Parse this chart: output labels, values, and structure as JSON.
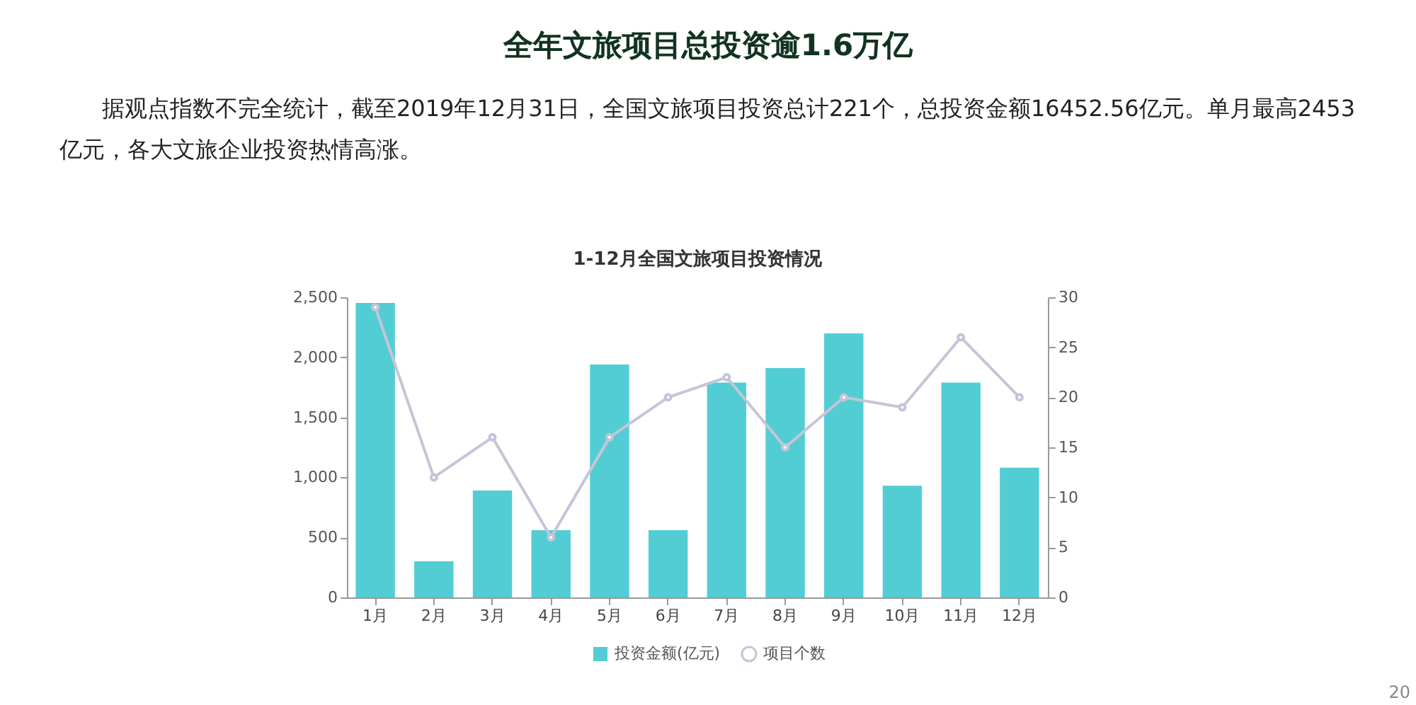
{
  "chart_data": {
    "type": "bar",
    "title": "全年文旅项目总投资逾1.6万亿",
    "subtitle": "据观点指数不完全统计，截至2019年12月31日，全国文旅项目投资总计221个，总投资金额16452.56亿元。单月最高2453亿元，各大文旅企业投资热情高涨。",
    "annotations": [
      "1-12月全国文旅项目投资情况",
      "20"
    ],
    "categories": [
      "1月",
      "2月",
      "3月",
      "4月",
      "5月",
      "6月",
      "7月",
      "8月",
      "9月",
      "10月",
      "11月",
      "12月"
    ],
    "series": [
      {
        "name": "投资金额(亿元)",
        "color": "#52cdd3",
        "values": [
          2453,
          300,
          890,
          560,
          1940,
          560,
          1790,
          1910,
          2200,
          930,
          1790,
          1080
        ]
      },
      {
        "name": "项目个数",
        "type": "line",
        "axis": "y2",
        "color": "#c5c5d8",
        "marker": "circle",
        "values": [
          29,
          12,
          16,
          6,
          16,
          20,
          22,
          15,
          20,
          19,
          26,
          20
        ]
      }
    ],
    "ylim": [
      0,
      2500
    ],
    "yticks": [
      0,
      500,
      {
        "value": 1000,
        "label": "1,000"
      },
      {
        "value": 1500,
        "label": "1,500"
      },
      {
        "value": 2000,
        "label": "2,000"
      },
      {
        "value": 2500,
        "label": "2,500"
      }
    ],
    "y2lim": [
      0,
      30
    ],
    "y2ticks": [
      0,
      5,
      10,
      15,
      20,
      25,
      30
    ],
    "grid": false,
    "legend": "bottom"
  }
}
